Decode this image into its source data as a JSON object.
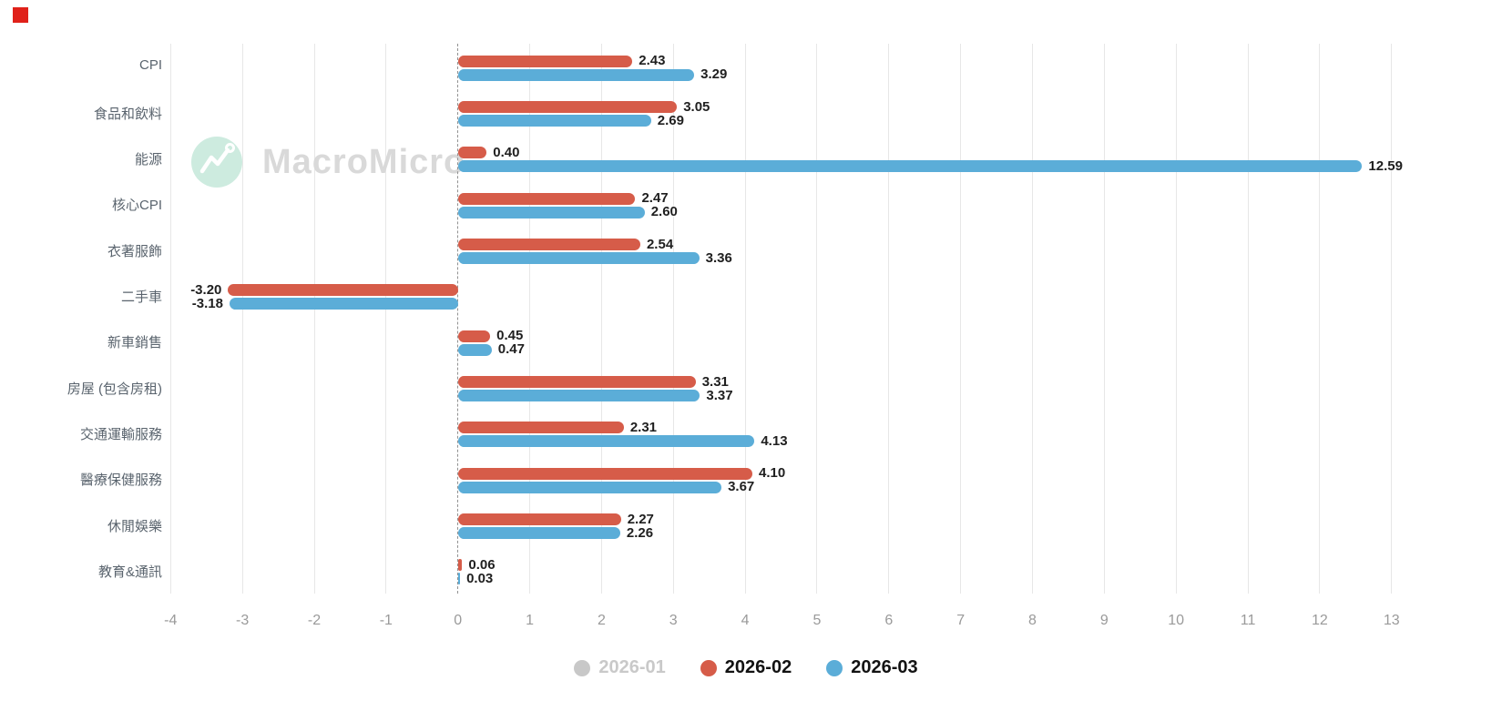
{
  "marker_color": "#e0211a",
  "watermark": {
    "text": "MacroMicro",
    "logo": "macromicro-line-chart-logo",
    "circle_color": "#cdebdf",
    "text_color": "#d9d9d9"
  },
  "chart_data": {
    "type": "bar",
    "orientation": "horizontal",
    "title": "",
    "categories": [
      "CPI",
      "食品和飲料",
      "能源",
      "核心CPI",
      "衣著服飾",
      "二手車",
      "新車銷售",
      "房屋 (包含房租)",
      "交通運輸服務",
      "醫療保健服務",
      "休閒娛樂",
      "教育&通訊"
    ],
    "series": [
      {
        "name": "2026-01",
        "color": "#c8c8c8",
        "visible": false,
        "values": [],
        "labels": []
      },
      {
        "name": "2026-02",
        "color": "#d65c49",
        "visible": true,
        "values": [
          2.43,
          3.05,
          0.4,
          2.47,
          2.54,
          -3.2,
          0.45,
          3.31,
          2.31,
          4.1,
          2.27,
          0.06
        ],
        "labels": [
          "2.43",
          "3.05",
          "0.40",
          "2.47",
          "2.54",
          "-3.20",
          "0.45",
          "3.31",
          "2.31",
          "4.10",
          "2.27",
          "0.06"
        ]
      },
      {
        "name": "2026-03",
        "color": "#5badd8",
        "visible": true,
        "values": [
          3.29,
          2.69,
          12.59,
          2.6,
          3.36,
          -3.18,
          0.47,
          3.37,
          4.13,
          3.67,
          2.26,
          0.03
        ],
        "labels": [
          "3.29",
          "2.69",
          "12.59",
          "2.60",
          "3.36",
          "-3.18",
          "0.47",
          "3.37",
          "4.13",
          "3.67",
          "2.26",
          "0.03"
        ]
      }
    ],
    "xlim": [
      -4,
      13
    ],
    "x_tick_labels": [
      "-4",
      "-3",
      "-2",
      "-1",
      "0",
      "1",
      "2",
      "3",
      "4",
      "5",
      "6",
      "7",
      "8",
      "9",
      "10",
      "11",
      "12",
      "13"
    ],
    "grid": true,
    "zero_line": "dashed",
    "legend_position": "bottom"
  },
  "legend": {
    "items": [
      {
        "label": "2026-01",
        "color": "#c8c8c8",
        "active": false
      },
      {
        "label": "2026-02",
        "color": "#d65c49",
        "active": true
      },
      {
        "label": "2026-03",
        "color": "#5badd8",
        "active": true
      }
    ]
  }
}
